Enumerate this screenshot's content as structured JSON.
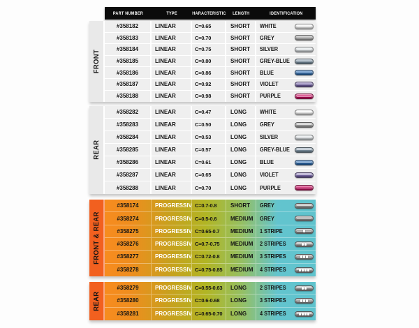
{
  "header": {
    "columns": [
      {
        "key": "part",
        "label": "PART NUMBER"
      },
      {
        "key": "type",
        "label": "TYPE"
      },
      {
        "key": "char",
        "label": "CHARACTERISTICS"
      },
      {
        "key": "len",
        "label": "LENGTH"
      },
      {
        "key": "id",
        "label": "IDENTIFICATION"
      }
    ]
  },
  "sections": [
    {
      "label": "FRONT",
      "style": "linear",
      "rows": [
        {
          "part_number": "#358182",
          "type": "LINEAR",
          "characteristics": "C=0.65",
          "length": "SHORT",
          "identification": "WHITE",
          "capsule": "white",
          "stripes": 0
        },
        {
          "part_number": "#358183",
          "type": "LINEAR",
          "characteristics": "C=0.70",
          "length": "SHORT",
          "identification": "GREY",
          "capsule": "grey",
          "stripes": 0
        },
        {
          "part_number": "#358184",
          "type": "LINEAR",
          "characteristics": "C=0.75",
          "length": "SHORT",
          "identification": "SILVER",
          "capsule": "silver",
          "stripes": 0
        },
        {
          "part_number": "#358185",
          "type": "LINEAR",
          "characteristics": "C=0.80",
          "length": "SHORT",
          "identification": "GREY-BLUE",
          "capsule": "grey-blue",
          "stripes": 0
        },
        {
          "part_number": "#358186",
          "type": "LINEAR",
          "characteristics": "C=0.86",
          "length": "SHORT",
          "identification": "BLUE",
          "capsule": "blue",
          "stripes": 0
        },
        {
          "part_number": "#358187",
          "type": "LINEAR",
          "characteristics": "C=0.92",
          "length": "SHORT",
          "identification": "VIOLET",
          "capsule": "violet",
          "stripes": 0
        },
        {
          "part_number": "#358188",
          "type": "LINEAR",
          "characteristics": "C=0.98",
          "length": "SHORT",
          "identification": "PURPLE",
          "capsule": "purple",
          "stripes": 0
        }
      ]
    },
    {
      "label": "REAR",
      "style": "linear",
      "rows": [
        {
          "part_number": "#358282",
          "type": "LINEAR",
          "characteristics": "C=0.47",
          "length": "LONG",
          "identification": "WHITE",
          "capsule": "white",
          "stripes": 0
        },
        {
          "part_number": "#358283",
          "type": "LINEAR",
          "characteristics": "C=0.50",
          "length": "LONG",
          "identification": "GREY",
          "capsule": "grey",
          "stripes": 0
        },
        {
          "part_number": "#358284",
          "type": "LINEAR",
          "characteristics": "C=0.53",
          "length": "LONG",
          "identification": "SILVER",
          "capsule": "silver",
          "stripes": 0
        },
        {
          "part_number": "#358285",
          "type": "LINEAR",
          "characteristics": "C=0.57",
          "length": "LONG",
          "identification": "GREY-BLUE",
          "capsule": "grey-blue",
          "stripes": 0
        },
        {
          "part_number": "#358286",
          "type": "LINEAR",
          "characteristics": "C=0.61",
          "length": "LONG",
          "identification": "BLUE",
          "capsule": "blue",
          "stripes": 0
        },
        {
          "part_number": "#358287",
          "type": "LINEAR",
          "characteristics": "C=0.65",
          "length": "LONG",
          "identification": "VIOLET",
          "capsule": "violet",
          "stripes": 0
        },
        {
          "part_number": "#358288",
          "type": "LINEAR",
          "characteristics": "C=0.70",
          "length": "LONG",
          "identification": "PURPLE",
          "capsule": "purple",
          "stripes": 0
        }
      ]
    },
    {
      "label": "FRONT & REAR",
      "style": "progressive",
      "rows": [
        {
          "part_number": "#358174",
          "type": "PROGRESSIVE",
          "characteristics": "C=0.7-0.8",
          "length": "SHORT",
          "identification": "GREY",
          "capsule": "stripe-grey",
          "stripes": 0
        },
        {
          "part_number": "#358274",
          "type": "PROGRESSIVE",
          "characteristics": "C=0.5-0.6",
          "length": "MEDIUM",
          "identification": "GREY",
          "capsule": "stripe-grey",
          "stripes": 0
        },
        {
          "part_number": "#358275",
          "type": "PROGRESSIVE",
          "characteristics": "C=0.65-0.7",
          "length": "MEDIUM",
          "identification": "1 STRIPE",
          "capsule": "stripe-grey",
          "stripes": 1
        },
        {
          "part_number": "#358276",
          "type": "PROGRESSIVE",
          "characteristics": "C=0.7-0.75",
          "length": "MEDIUM",
          "identification": "2 STRIPES",
          "capsule": "stripe-grey",
          "stripes": 2
        },
        {
          "part_number": "#358277",
          "type": "PROGRESSIVE",
          "characteristics": "C=0.72-0.8",
          "length": "MEDIUM",
          "identification": "3 STRIPES",
          "capsule": "stripe-grey",
          "stripes": 3
        },
        {
          "part_number": "#358278",
          "type": "PROGRESSIVE",
          "characteristics": "C=0.75-0.85",
          "length": "MEDIUM",
          "identification": "4 STRIPES",
          "capsule": "stripe-grey",
          "stripes": 4
        }
      ]
    },
    {
      "label": "REAR",
      "style": "progressive",
      "rows": [
        {
          "part_number": "#358279",
          "type": "PROGRESSIVE",
          "characteristics": "C=0.55-0.63",
          "length": "LONG",
          "identification": "2 STRIPES",
          "capsule": "stripe-grey",
          "stripes": 2
        },
        {
          "part_number": "#358280",
          "type": "PROGRESSIVE",
          "characteristics": "C=0.6-0.68",
          "length": "LONG",
          "identification": "3 STRIPES",
          "capsule": "stripe-grey",
          "stripes": 3
        },
        {
          "part_number": "#358281",
          "type": "PROGRESSIVE",
          "characteristics": "C=0.65-0.70",
          "length": "LONG",
          "identification": "4 STRIPES",
          "capsule": "stripe-grey",
          "stripes": 4
        }
      ]
    }
  ],
  "colors": {
    "header_bg": "#0b0b0b",
    "row_bg": "#efefef",
    "section_label_bg": "#e9e9e9",
    "progressive_label_bg": "#f2601f",
    "progressive_gradient": [
      "#f78c1f",
      "#c9a01d",
      "#b1b524",
      "#95bf63",
      "#5fc3cd"
    ],
    "capsules": {
      "white": "#f6f6f6",
      "grey": "#a9a9a9",
      "silver": "#e2e7ea",
      "grey-blue": "#7e94a5",
      "blue": "#2a6cb3",
      "violet": "#7562a8",
      "purple": "#cf0e63",
      "stripe-grey": "#989898"
    }
  }
}
